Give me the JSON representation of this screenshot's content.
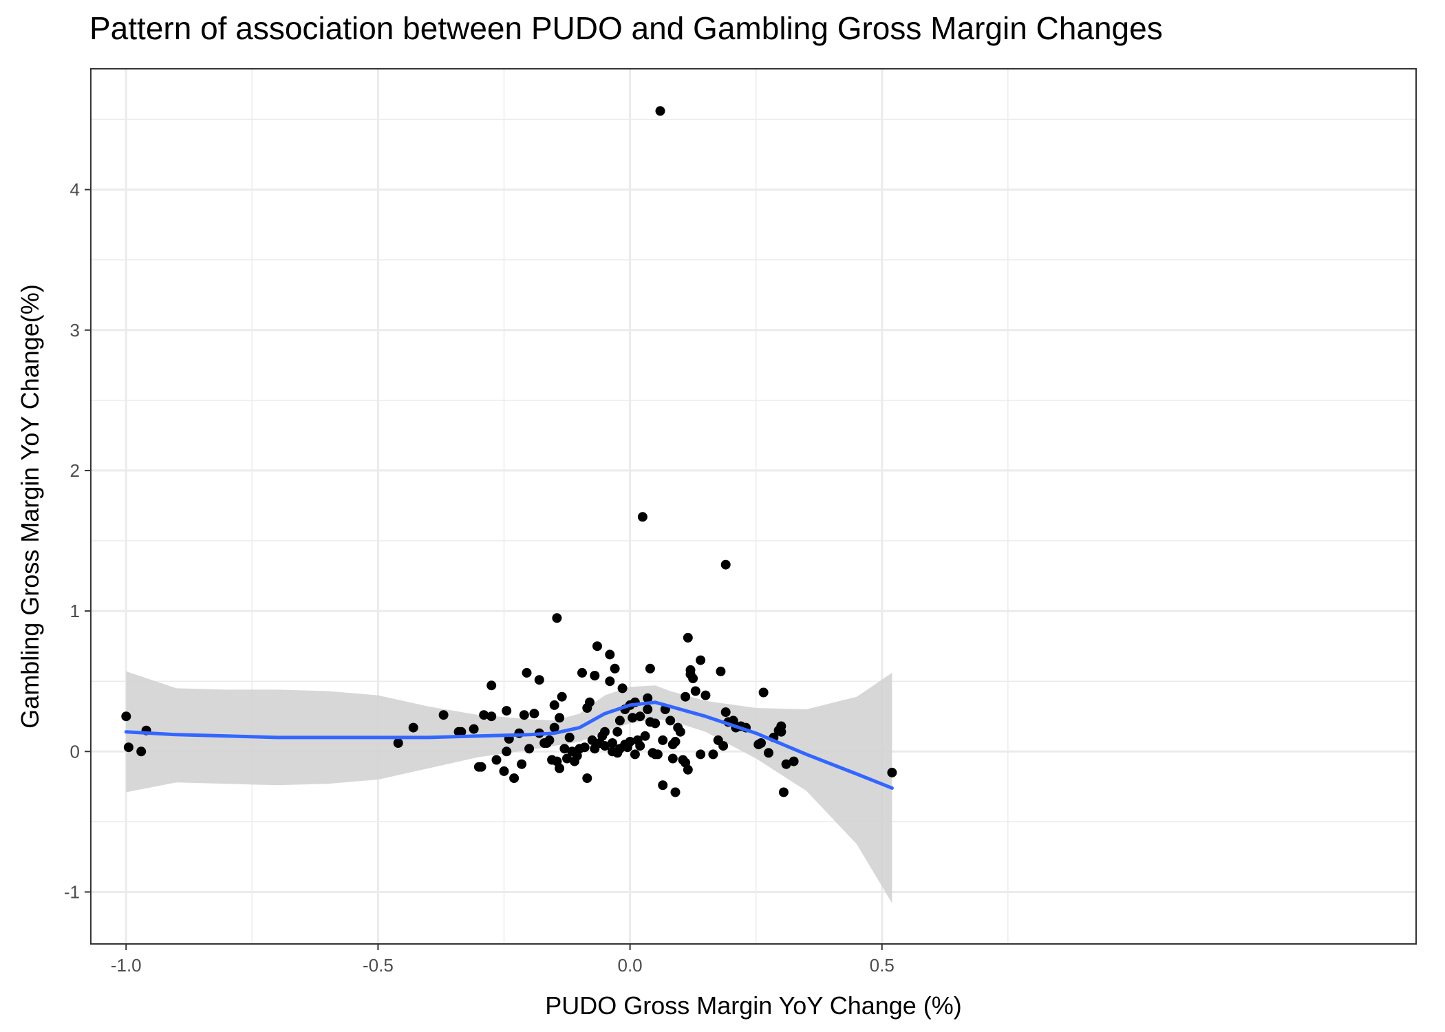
{
  "chart_data": {
    "type": "scatter",
    "title": "Pattern of association between PUDO and Gambling Gross Margin Changes",
    "xlabel": "PUDO Gross Margin YoY Change (%)",
    "ylabel": "Gambling Gross Margin YoY Change(%)",
    "xlim": [
      -1.07,
      1.56
    ],
    "ylim": [
      -1.37,
      4.86
    ],
    "x_ticks": [
      -1.0,
      -0.5,
      0.0,
      0.5
    ],
    "x_tick_labels": [
      "-1.0",
      "-0.5",
      "0.0",
      "0.5"
    ],
    "y_ticks": [
      -1,
      0,
      1,
      2,
      3,
      4
    ],
    "y_tick_labels": [
      "-1",
      "0",
      "1",
      "2",
      "3",
      "4"
    ],
    "grid": true,
    "colors": {
      "points": "#000000",
      "smooth_line": "#3366ff",
      "confidence_band": "#d3d3d3",
      "grid": "#ebebeb",
      "panel_border": "#333333"
    },
    "points": [
      [
        -1.0,
        0.25
      ],
      [
        -0.995,
        0.03
      ],
      [
        -0.97,
        0.0
      ],
      [
        -0.96,
        0.15
      ],
      [
        -0.46,
        0.06
      ],
      [
        -0.43,
        0.17
      ],
      [
        -0.37,
        0.26
      ],
      [
        -0.34,
        0.14
      ],
      [
        -0.335,
        0.14
      ],
      [
        -0.31,
        0.16
      ],
      [
        -0.3,
        -0.11
      ],
      [
        -0.295,
        -0.11
      ],
      [
        -0.29,
        0.26
      ],
      [
        -0.275,
        0.25
      ],
      [
        -0.275,
        0.47
      ],
      [
        -0.265,
        -0.06
      ],
      [
        -0.25,
        -0.14
      ],
      [
        -0.245,
        0.29
      ],
      [
        -0.245,
        0.0
      ],
      [
        -0.24,
        0.09
      ],
      [
        -0.23,
        -0.19
      ],
      [
        -0.22,
        0.13
      ],
      [
        -0.215,
        -0.09
      ],
      [
        -0.21,
        0.26
      ],
      [
        -0.205,
        0.56
      ],
      [
        -0.2,
        0.02
      ],
      [
        -0.19,
        0.27
      ],
      [
        -0.18,
        0.13
      ],
      [
        -0.18,
        0.51
      ],
      [
        -0.17,
        0.06
      ],
      [
        -0.165,
        0.06
      ],
      [
        -0.16,
        0.08
      ],
      [
        -0.155,
        -0.06
      ],
      [
        -0.15,
        0.17
      ],
      [
        -0.15,
        0.33
      ],
      [
        -0.145,
        0.95
      ],
      [
        -0.145,
        -0.07
      ],
      [
        -0.14,
        -0.12
      ],
      [
        -0.14,
        0.24
      ],
      [
        -0.135,
        0.39
      ],
      [
        -0.13,
        0.02
      ],
      [
        -0.125,
        -0.05
      ],
      [
        -0.12,
        0.1
      ],
      [
        -0.115,
        0.0
      ],
      [
        -0.11,
        -0.07
      ],
      [
        -0.105,
        -0.03
      ],
      [
        -0.1,
        0.02
      ],
      [
        -0.095,
        0.56
      ],
      [
        -0.09,
        0.03
      ],
      [
        -0.085,
        -0.19
      ],
      [
        -0.085,
        0.31
      ],
      [
        -0.08,
        0.35
      ],
      [
        -0.075,
        0.08
      ],
      [
        -0.07,
        0.54
      ],
      [
        -0.07,
        0.02
      ],
      [
        -0.065,
        0.75
      ],
      [
        -0.06,
        0.06
      ],
      [
        -0.055,
        0.11
      ],
      [
        -0.05,
        0.04
      ],
      [
        -0.05,
        0.14
      ],
      [
        -0.04,
        0.5
      ],
      [
        -0.04,
        0.69
      ],
      [
        -0.035,
        0.0
      ],
      [
        -0.035,
        0.06
      ],
      [
        -0.03,
        0.59
      ],
      [
        -0.025,
        -0.01
      ],
      [
        -0.025,
        0.14
      ],
      [
        -0.02,
        0.22
      ],
      [
        -0.02,
        0.02
      ],
      [
        -0.015,
        0.45
      ],
      [
        -0.01,
        0.3
      ],
      [
        -0.01,
        0.05
      ],
      [
        -0.005,
        0.03
      ],
      [
        0.0,
        0.33
      ],
      [
        0.0,
        0.07
      ],
      [
        0.005,
        0.24
      ],
      [
        0.01,
        0.35
      ],
      [
        0.01,
        -0.02
      ],
      [
        0.015,
        0.08
      ],
      [
        0.02,
        0.04
      ],
      [
        0.02,
        0.25
      ],
      [
        0.025,
        1.67
      ],
      [
        0.03,
        0.11
      ],
      [
        0.035,
        0.3
      ],
      [
        0.035,
        0.38
      ],
      [
        0.04,
        0.59
      ],
      [
        0.04,
        0.21
      ],
      [
        0.045,
        -0.01
      ],
      [
        0.05,
        0.2
      ],
      [
        0.05,
        -0.02
      ],
      [
        0.055,
        -0.02
      ],
      [
        0.06,
        4.56
      ],
      [
        0.065,
        -0.24
      ],
      [
        0.065,
        0.08
      ],
      [
        0.07,
        0.3
      ],
      [
        0.08,
        0.22
      ],
      [
        0.085,
        -0.05
      ],
      [
        0.085,
        0.05
      ],
      [
        0.09,
        0.07
      ],
      [
        0.09,
        -0.29
      ],
      [
        0.095,
        0.17
      ],
      [
        0.1,
        0.14
      ],
      [
        0.105,
        -0.06
      ],
      [
        0.11,
        0.39
      ],
      [
        0.11,
        -0.08
      ],
      [
        0.115,
        0.81
      ],
      [
        0.115,
        -0.13
      ],
      [
        0.12,
        0.58
      ],
      [
        0.12,
        0.55
      ],
      [
        0.125,
        0.52
      ],
      [
        0.13,
        0.43
      ],
      [
        0.14,
        0.65
      ],
      [
        0.14,
        -0.02
      ],
      [
        0.15,
        0.4
      ],
      [
        0.165,
        -0.02
      ],
      [
        0.175,
        0.08
      ],
      [
        0.18,
        0.57
      ],
      [
        0.185,
        0.04
      ],
      [
        0.19,
        0.28
      ],
      [
        0.19,
        1.33
      ],
      [
        0.195,
        0.21
      ],
      [
        0.205,
        0.22
      ],
      [
        0.21,
        0.17
      ],
      [
        0.22,
        0.18
      ],
      [
        0.23,
        0.17
      ],
      [
        0.255,
        0.05
      ],
      [
        0.26,
        0.06
      ],
      [
        0.265,
        0.42
      ],
      [
        0.275,
        -0.01
      ],
      [
        0.285,
        0.1
      ],
      [
        0.295,
        0.15
      ],
      [
        0.3,
        0.14
      ],
      [
        0.3,
        0.18
      ],
      [
        0.305,
        -0.29
      ],
      [
        0.31,
        -0.09
      ],
      [
        0.325,
        -0.07
      ],
      [
        0.52,
        -0.15
      ]
    ],
    "smooth": {
      "x": [
        -1.0,
        -0.9,
        -0.8,
        -0.7,
        -0.6,
        -0.5,
        -0.4,
        -0.3,
        -0.2,
        -0.15,
        -0.1,
        -0.05,
        0.0,
        0.05,
        0.08,
        0.15,
        0.25,
        0.35,
        0.45,
        0.52
      ],
      "y": [
        0.14,
        0.12,
        0.11,
        0.1,
        0.1,
        0.1,
        0.1,
        0.11,
        0.12,
        0.13,
        0.17,
        0.27,
        0.33,
        0.35,
        0.32,
        0.25,
        0.13,
        -0.02,
        -0.16,
        -0.26
      ],
      "lower": [
        -0.29,
        -0.22,
        -0.23,
        -0.24,
        -0.23,
        -0.2,
        -0.12,
        -0.04,
        0.01,
        0.04,
        0.07,
        0.14,
        0.2,
        0.23,
        0.22,
        0.14,
        -0.05,
        -0.28,
        -0.66,
        -1.08
      ],
      "upper": [
        0.57,
        0.45,
        0.44,
        0.44,
        0.43,
        0.4,
        0.32,
        0.26,
        0.23,
        0.22,
        0.27,
        0.4,
        0.46,
        0.47,
        0.43,
        0.36,
        0.31,
        0.3,
        0.39,
        0.56
      ]
    }
  }
}
